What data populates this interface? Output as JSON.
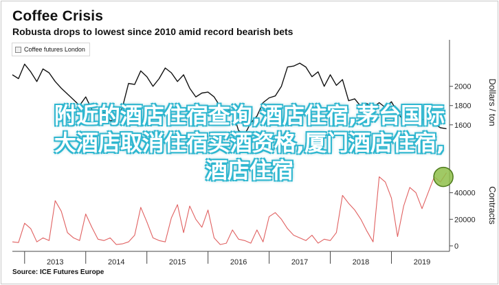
{
  "header": {
    "title": "Coffee Crisis",
    "subtitle": "Robusta drops to lowest since 2010 amid record bearish bets"
  },
  "legend": {
    "label": "Coffee futures London"
  },
  "source": "Source: ICE Futures Europe",
  "overlay": {
    "line1": "附近的酒店住宿查询,酒店住宿,茅台国际",
    "line2": "大酒店取消住宿买酒资格,厦门酒店住宿,",
    "line3": "酒店住宿"
  },
  "colors": {
    "price": "#111111",
    "volume": "#e06060",
    "highlight": "#8fbf4a"
  },
  "chart_data": {
    "type": "line",
    "x_tick_labels": [
      "2013",
      "2014",
      "2015",
      "2016",
      "2017",
      "2018",
      "2019"
    ],
    "x_range": [
      2012.3,
      2019.45
    ],
    "y_right_upper": {
      "label": "Dollars / ton",
      "ticks": [
        1600,
        1800,
        2000
      ],
      "range": [
        1470,
        2340
      ]
    },
    "y_right_lower": {
      "label": "Contracts",
      "ticks": [
        0,
        20000,
        40000
      ],
      "range": [
        0,
        61000
      ]
    },
    "series": [
      {
        "name": "price",
        "axis": "upper",
        "x": [
          2012.3,
          2012.4,
          2012.5,
          2012.6,
          2012.7,
          2012.8,
          2012.9,
          2013.0,
          2013.1,
          2013.2,
          2013.3,
          2013.4,
          2013.5,
          2013.6,
          2013.7,
          2013.8,
          2013.9,
          2014.0,
          2014.1,
          2014.2,
          2014.3,
          2014.4,
          2014.5,
          2014.6,
          2014.7,
          2014.8,
          2014.9,
          2015.0,
          2015.1,
          2015.2,
          2015.3,
          2015.4,
          2015.5,
          2015.6,
          2015.7,
          2015.8,
          2015.9,
          2016.0,
          2016.1,
          2016.2,
          2016.3,
          2016.4,
          2016.5,
          2016.6,
          2016.7,
          2016.8,
          2016.9,
          2017.0,
          2017.1,
          2017.2,
          2017.3,
          2017.4,
          2017.5,
          2017.6,
          2017.7,
          2017.8,
          2017.9,
          2018.0,
          2018.1,
          2018.2,
          2018.3,
          2018.4,
          2018.5,
          2018.6,
          2018.7,
          2018.8,
          2018.9,
          2019.0,
          2019.1,
          2019.2,
          2019.3,
          2019.4
        ],
        "values": [
          2120,
          2080,
          2230,
          2150,
          2050,
          2180,
          2140,
          2050,
          1980,
          1920,
          1860,
          1800,
          1890,
          1760,
          1720,
          1730,
          1640,
          1660,
          1780,
          2030,
          2020,
          2160,
          2100,
          2000,
          2080,
          2190,
          2140,
          2050,
          2120,
          1980,
          1890,
          1930,
          1940,
          1890,
          1790,
          1760,
          1740,
          1540,
          1500,
          1620,
          1690,
          1830,
          1880,
          1900,
          2000,
          2200,
          2210,
          2240,
          2200,
          2100,
          2150,
          2000,
          2120,
          2010,
          2070,
          1850,
          1870,
          1790,
          1820,
          1780,
          1830,
          1780,
          1840,
          1730,
          1640,
          1680,
          1700,
          1650,
          1680,
          1610,
          1570,
          1560
        ]
      },
      {
        "name": "open interest",
        "axis": "lower",
        "x": [
          2012.3,
          2012.4,
          2012.5,
          2012.6,
          2012.7,
          2012.8,
          2012.9,
          2013.0,
          2013.1,
          2013.2,
          2013.3,
          2013.4,
          2013.5,
          2013.6,
          2013.7,
          2013.8,
          2013.9,
          2014.0,
          2014.1,
          2014.2,
          2014.3,
          2014.4,
          2014.5,
          2014.6,
          2014.7,
          2014.8,
          2014.9,
          2015.0,
          2015.1,
          2015.2,
          2015.3,
          2015.4,
          2015.5,
          2015.6,
          2015.7,
          2015.8,
          2015.9,
          2016.0,
          2016.1,
          2016.2,
          2016.3,
          2016.4,
          2016.5,
          2016.6,
          2016.7,
          2016.8,
          2016.9,
          2017.0,
          2017.1,
          2017.2,
          2017.3,
          2017.4,
          2017.5,
          2017.6,
          2017.7,
          2017.8,
          2017.9,
          2018.0,
          2018.1,
          2018.2,
          2018.3,
          2018.4,
          2018.5,
          2018.6,
          2018.7,
          2018.8,
          2018.9,
          2019.0,
          2019.1,
          2019.2,
          2019.3,
          2019.4
        ],
        "values": [
          3000,
          2500,
          17000,
          13000,
          3000,
          6000,
          4000,
          34000,
          26000,
          10000,
          6000,
          4000,
          24000,
          14000,
          5000,
          4000,
          6000,
          1000,
          1500,
          3000,
          8000,
          29000,
          18000,
          6000,
          4000,
          3000,
          21000,
          31000,
          10000,
          30000,
          20000,
          14000,
          27000,
          6000,
          1000,
          2000,
          12000,
          5000,
          4000,
          2000,
          12000,
          3000,
          22000,
          25000,
          20000,
          13000,
          8000,
          6000,
          4000,
          8000,
          2000,
          5000,
          4000,
          10000,
          38000,
          32000,
          27000,
          20000,
          11000,
          3000,
          52000,
          48000,
          36000,
          7000,
          30000,
          44000,
          40000,
          28000,
          40000,
          52000,
          48000,
          55000
        ]
      }
    ],
    "grid": false,
    "legend_position": "top-left"
  }
}
